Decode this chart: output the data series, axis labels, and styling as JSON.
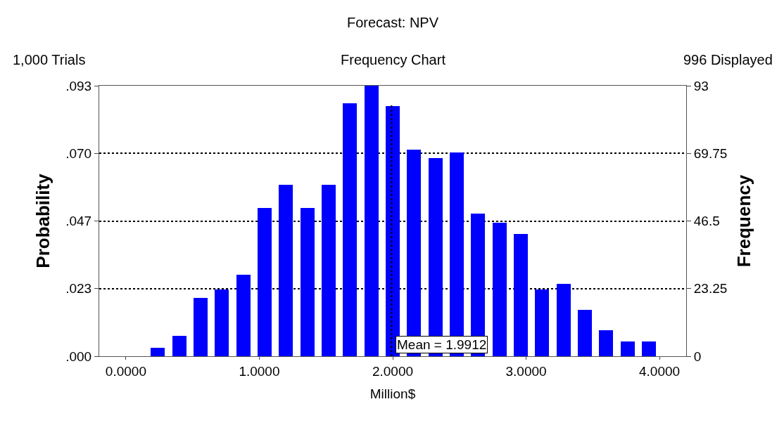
{
  "chart_data": {
    "type": "histogram",
    "title": "Forecast: NPV",
    "subtitle": "Frequency Chart",
    "annotations": [
      "1,000 Trials",
      "996 Displayed"
    ],
    "xlabel": "Million$",
    "ylabel": "Probability",
    "y2label": "Frequency",
    "bins": [
      0,
      0.16,
      0.32,
      0.48,
      0.64,
      0.8,
      0.96,
      1.12,
      1.28,
      1.44,
      1.6,
      1.76,
      1.92,
      2.08,
      2.24,
      2.4,
      2.56,
      2.72,
      2.88,
      3.04,
      3.2,
      3.36,
      3.52,
      3.68,
      3.84,
      4.0
    ],
    "series": [
      {
        "color": "#0000ff",
        "axis": "y2",
        "values": [
          0,
          3,
          7,
          20,
          23,
          28,
          51,
          59,
          51,
          59,
          87,
          93,
          86,
          71,
          68,
          70,
          49,
          46,
          42,
          23,
          25,
          16,
          9,
          5,
          5
        ]
      }
    ],
    "xlim": [
      -0.2,
      4.2
    ],
    "xticks": [
      {
        "value": 0,
        "label": "0.0000"
      },
      {
        "value": 1,
        "label": "1.0000"
      },
      {
        "value": 2,
        "label": "2.0000"
      },
      {
        "value": 3,
        "label": "3.0000"
      },
      {
        "value": 4,
        "label": "4.0000"
      }
    ],
    "ylim": [
      0,
      0.093
    ],
    "yticks": [
      {
        "value": 0,
        "label": ".000"
      },
      {
        "value": 0.02325,
        "label": ".023"
      },
      {
        "value": 0.0465,
        "label": ".047"
      },
      {
        "value": 0.06975,
        "label": ".070"
      },
      {
        "value": 0.093,
        "label": ".093"
      }
    ],
    "y2lim": [
      0,
      93
    ],
    "y2ticks": [
      0,
      23.25,
      46.5,
      69.75,
      93
    ],
    "grid": "y",
    "ref_lines": [
      {
        "axis": "x",
        "value": 1.9912,
        "label": "Mean = 1.9912",
        "line_style": "dotted",
        "color": "#000000"
      }
    ]
  }
}
